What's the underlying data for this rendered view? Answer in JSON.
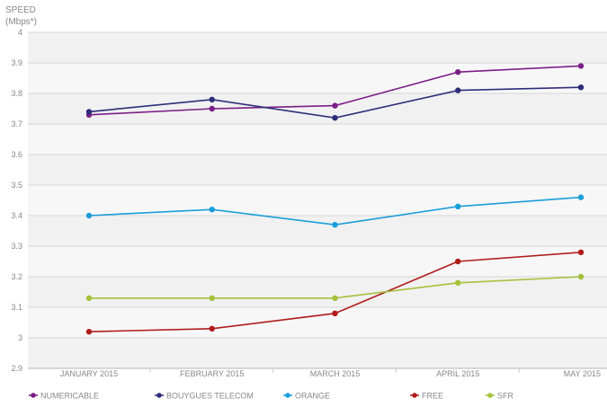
{
  "chart_data": {
    "type": "line",
    "ylabel_line1": "SPEED",
    "ylabel_line2": "(Mbps*)",
    "categories": [
      "JANUARY 2015",
      "FEBRUARY 2015",
      "MARCH 2015",
      "APRIL 2015",
      "MAY 2015"
    ],
    "ylim": [
      2.9,
      4.0
    ],
    "yticks": [
      "2.9",
      "3",
      "3.1",
      "3.2",
      "3.3",
      "3.4",
      "3.5",
      "3.6",
      "3.7",
      "3.8",
      "3.9",
      "4"
    ],
    "grid": true,
    "legend_position": "bottom",
    "series": [
      {
        "name": "NUMERICABLE",
        "color": "#7b1f86",
        "values": [
          3.73,
          3.75,
          3.76,
          3.87,
          3.89
        ]
      },
      {
        "name": "BOUYGUES TELECOM",
        "color": "#2d2e78",
        "values": [
          3.74,
          3.78,
          3.72,
          3.81,
          3.82
        ]
      },
      {
        "name": "ORANGE",
        "color": "#1a9ed9",
        "values": [
          3.4,
          3.42,
          3.37,
          3.43,
          3.46
        ]
      },
      {
        "name": "FREE",
        "color": "#b01c1c",
        "values": [
          3.02,
          3.03,
          3.08,
          3.25,
          3.28
        ]
      },
      {
        "name": "SFR",
        "color": "#a5c13a",
        "values": [
          3.13,
          3.13,
          3.13,
          3.18,
          3.2
        ]
      }
    ]
  }
}
